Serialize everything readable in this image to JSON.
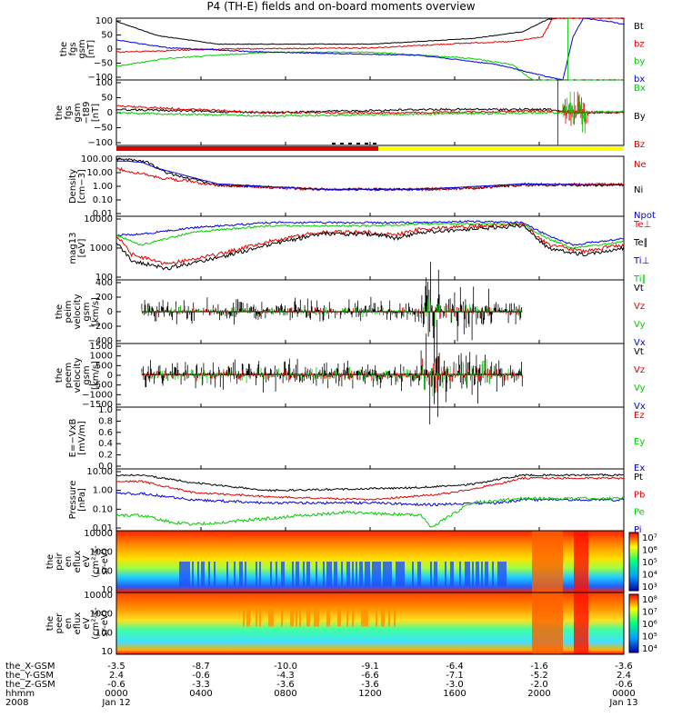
{
  "title": "P4 (TH-E) fields and on-board moments overview",
  "colors": {
    "black": "#000000",
    "red": "#e00000",
    "green": "#00cc00",
    "blue": "#0000dd",
    "yellow": "#ffff00",
    "orange": "#ff4000"
  },
  "chart_data": [
    {
      "type": "line",
      "panel": "fgs_gsm",
      "ylabel": [
        "the",
        "fgs",
        "gsm",
        "[nT]"
      ],
      "yticks": [
        "100",
        "50",
        "0",
        "−50",
        "−100"
      ],
      "ylim": [
        -100,
        100
      ],
      "series": [
        {
          "name": "Bt"
        },
        {
          "name": "bz"
        },
        {
          "name": "by"
        },
        {
          "name": "bx"
        }
      ]
    },
    {
      "type": "line",
      "panel": "fgs_gsm_t89",
      "ylabel": [
        "the",
        "fgs",
        "gsm",
        "−t89",
        "[nT]"
      ],
      "yticks": [
        "100",
        "50",
        "0",
        "−50",
        "−100"
      ],
      "ylim": [
        -125,
        125
      ],
      "series": [
        {
          "name": "Bx"
        },
        {
          "name": "By"
        },
        {
          "name": "Bz"
        }
      ]
    },
    {
      "type": "line",
      "panel": "density",
      "ylabel": [
        "Density",
        "[cm−3]"
      ],
      "yticks": [
        "100.00",
        "10.00",
        "1.00",
        "0.10",
        "0.01"
      ],
      "ylim": [
        0.01,
        100
      ],
      "scale": "log",
      "series": [
        {
          "name": "Ne"
        },
        {
          "name": "Ni"
        },
        {
          "name": "Npot"
        }
      ]
    },
    {
      "type": "line",
      "panel": "temperature",
      "ylabel": [
        "mag13",
        "[eV]"
      ],
      "yticks": [
        "10000",
        "1000",
        "100"
      ],
      "ylim": [
        30,
        10000
      ],
      "scale": "log",
      "series": [
        {
          "name": "Te⊥"
        },
        {
          "name": "Te∥"
        },
        {
          "name": "Ti⊥"
        },
        {
          "name": "Ti∥"
        }
      ]
    },
    {
      "type": "line",
      "panel": "peim_velocity",
      "ylabel": [
        "the",
        "peim",
        "velocity",
        "gsm",
        "[km/s]"
      ],
      "yticks": [
        "400",
        "200",
        "0",
        "−200",
        "−400"
      ],
      "ylim": [
        -400,
        400
      ],
      "series": [
        {
          "name": "Vt"
        },
        {
          "name": "Vz"
        },
        {
          "name": "Vy"
        },
        {
          "name": "Vx"
        }
      ]
    },
    {
      "type": "line",
      "panel": "peem_velocity",
      "ylabel": [
        "the",
        "peem",
        "velocity",
        "gsm",
        "[km/s]"
      ],
      "yticks": [
        "1500",
        "1000",
        "500",
        "0",
        "−500",
        "−1000",
        "−1500"
      ],
      "ylim": [
        -1500,
        1500
      ],
      "series": [
        {
          "name": "Vt"
        },
        {
          "name": "Vz"
        },
        {
          "name": "Vy"
        },
        {
          "name": "Vx"
        }
      ]
    },
    {
      "type": "line",
      "panel": "efield",
      "ylabel": [
        "E=−VxB",
        "[mV/m]"
      ],
      "yticks": [
        "1.0",
        "0.8",
        "0.6",
        "0.4",
        "0.2",
        "0.0"
      ],
      "ylim": [
        0,
        1
      ],
      "series": [
        {
          "name": "Ez"
        },
        {
          "name": "Ey"
        },
        {
          "name": "Ex"
        }
      ]
    },
    {
      "type": "line",
      "panel": "pressure",
      "ylabel": [
        "Pressure",
        "[nPa]"
      ],
      "yticks": [
        "10.00",
        "1.00",
        "0.10",
        "0.01"
      ],
      "ylim": [
        0.01,
        10
      ],
      "scale": "log",
      "series": [
        {
          "name": "Pt"
        },
        {
          "name": "Pb"
        },
        {
          "name": "Pe"
        },
        {
          "name": "Pi"
        }
      ]
    },
    {
      "type": "heatmap",
      "panel": "peir_en_eflux",
      "ylabel": [
        "the",
        "peir",
        "en",
        "eflux",
        "eV",
        "(cm²-s-",
        "sr-eV)"
      ],
      "yticks": [
        "10000",
        "1000",
        "100",
        "10"
      ],
      "colorbar": [
        "10⁷",
        "10⁶",
        "10⁵",
        "10⁴",
        "10³"
      ]
    },
    {
      "type": "heatmap",
      "panel": "peer_en_eflux",
      "ylabel": [
        "the",
        "peer",
        "en",
        "eflux",
        "eV",
        "(cm²-s-",
        "sr-eV)"
      ],
      "yticks": [
        "10000",
        "1000",
        "100",
        "10"
      ],
      "colorbar": [
        "10⁸",
        "10⁷",
        "10⁶",
        "10⁵",
        "10⁴"
      ]
    }
  ],
  "time_axis": {
    "row_labels": [
      "the_X-GSM",
      "the_Y-GSM",
      "the_Z-GSM",
      "hhmm",
      "2008"
    ],
    "columns": [
      [
        "-3.5",
        "2.4",
        "-0.6",
        "0000",
        "Jan 12"
      ],
      [
        "-8.7",
        "-0.6",
        "-3.3",
        "0400",
        ""
      ],
      [
        "-10.0",
        "-4.3",
        "-3.6",
        "0800",
        ""
      ],
      [
        "-9.1",
        "-6.6",
        "-3.6",
        "1200",
        ""
      ],
      [
        "-6.4",
        "-7.1",
        "-3.0",
        "1600",
        ""
      ],
      [
        "-1.6",
        "-5.2",
        "-2.0",
        "2000",
        ""
      ],
      [
        "-3.6",
        "2.4",
        "-0.6",
        "0000",
        "Jan 13"
      ]
    ]
  }
}
